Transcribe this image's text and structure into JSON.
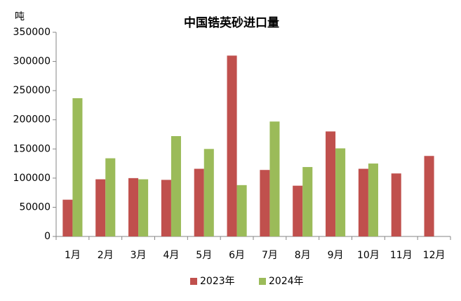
{
  "chart_data": {
    "type": "bar",
    "title": "中国锆英砂进口量",
    "y_label": "吨",
    "categories": [
      "1月",
      "2月",
      "3月",
      "4月",
      "5月",
      "6月",
      "7月",
      "8月",
      "9月",
      "10月",
      "11月",
      "12月"
    ],
    "series": [
      {
        "name": "2023年",
        "color": "#c0504d",
        "values": [
          63000,
          98000,
          100000,
          97000,
          116000,
          310000,
          114000,
          87000,
          180000,
          116000,
          108000,
          138000
        ]
      },
      {
        "name": "2024年",
        "color": "#9bbb59",
        "values": [
          237000,
          134000,
          98000,
          172000,
          150000,
          88000,
          197000,
          119000,
          151000,
          125000,
          null,
          null
        ]
      }
    ],
    "ylim": [
      0,
      350000
    ],
    "yticks": [
      0,
      50000,
      100000,
      150000,
      200000,
      250000,
      300000,
      350000
    ],
    "grid": false,
    "legend": "bottom"
  }
}
